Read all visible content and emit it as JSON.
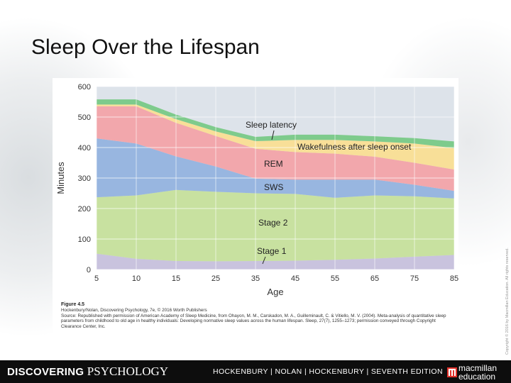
{
  "slide_title": "Sleep Over the Lifespan",
  "chart_data": {
    "type": "area",
    "stacked": true,
    "x": [
      5,
      10,
      15,
      25,
      35,
      45,
      55,
      65,
      75,
      85
    ],
    "x_tick_labels": [
      "5",
      "10",
      "15",
      "25",
      "35",
      "45",
      "55",
      "65",
      "75",
      "85"
    ],
    "y_tick_labels": [
      "0",
      "100",
      "200",
      "300",
      "400",
      "500",
      "600"
    ],
    "ylim": [
      0,
      600
    ],
    "xlabel": "Age",
    "ylabel": "Minutes",
    "grid": true,
    "series": [
      {
        "name": "Stage 1",
        "values": [
          52,
          35,
          28,
          27,
          28,
          29,
          32,
          36,
          42,
          48
        ]
      },
      {
        "name": "Stage 2",
        "values": [
          185,
          208,
          233,
          228,
          222,
          219,
          203,
          207,
          198,
          185
        ]
      },
      {
        "name": "SWS",
        "values": [
          193,
          170,
          110,
          83,
          48,
          47,
          60,
          52,
          38,
          25
        ]
      },
      {
        "name": "REM",
        "values": [
          105,
          122,
          110,
          100,
          98,
          90,
          85,
          75,
          72,
          70
        ]
      },
      {
        "name": "Wakefulness after sleep onset",
        "values": [
          6,
          6,
          12,
          15,
          25,
          40,
          45,
          50,
          63,
          70
        ]
      },
      {
        "name": "Sleep latency",
        "values": [
          17,
          17,
          15,
          14,
          14,
          17,
          17,
          17,
          18,
          22
        ]
      }
    ],
    "series_labels": {
      "sleep_latency": "Sleep latency",
      "waso": "Wakefulness after sleep onset",
      "rem": "REM",
      "sws": "SWS",
      "stage2": "Stage 2",
      "stage1": "Stage 1"
    },
    "colors": {
      "Stage 1": "#c9c3de",
      "Stage 2": "#c8e1a0",
      "SWS": "#98b6e0",
      "REM": "#f2a7ac",
      "Wakefulness after sleep onset": "#f8df98",
      "Sleep latency": "#7ecb8c"
    },
    "plot_background": "#dde3ea"
  },
  "caption": {
    "label": "Figure 4.5",
    "line1": "Hockenbury/Nolan, Discovering Psychology, 7e, © 2016 Worth Publishers",
    "line2": "Source: Republished with permission of American Academy of Sleep Medicine, from Ohayon, M. M., Carskadon, M. A., Guilleminault, C. & Vitiello, M. V. (2004). Meta-analysis of quantitative sleep parameters from childhood to old age in healthy individuals: Developing normative sleep values across the human lifespan. Sleep, 27(7), 1255–1273; permission conveyed through Copyright Clearance Center, Inc."
  },
  "copyright_side": "Copyright © 2016 by Macmillan Education. All rights reserved.",
  "footer": {
    "brand_bold": "DISCOVERING",
    "brand_light": "PSYCHOLOGY",
    "authors": "HOCKENBURY | NOLAN | HOCKENBURY | SEVENTH EDITION",
    "publisher_line1": "macmillan",
    "publisher_line2": "education",
    "footer_color": "#0d0d0d",
    "publisher_accent": "#e0312b"
  }
}
